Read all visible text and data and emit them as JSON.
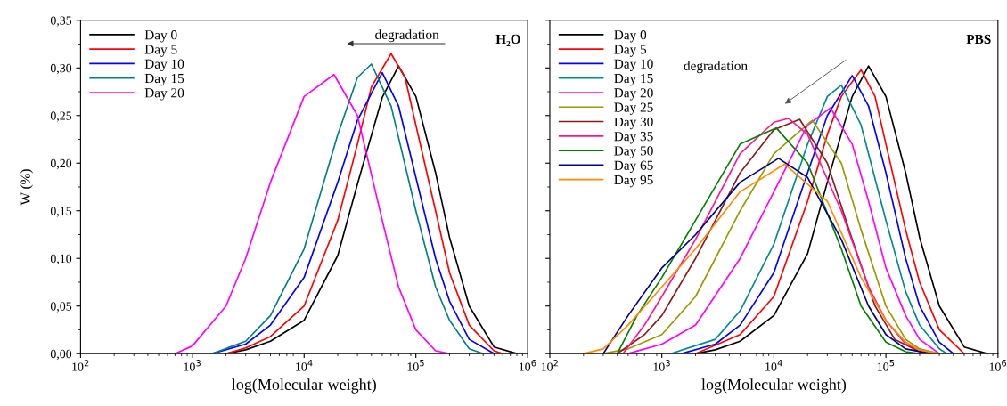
{
  "chart_data": [
    {
      "type": "line",
      "title": "H₂O",
      "xlabel": "log(Molecular weight)",
      "ylabel": "W (%)",
      "log": "x",
      "legend": "top left",
      "grid": false,
      "marker": "none",
      "line_style": "solid",
      "annotations": [
        "degradation"
      ],
      "xlim": [
        100,
        1000000
      ],
      "xticks": [
        {
          "value": 100,
          "label": "10$^{2}$"
        },
        {
          "value": 1000,
          "label": "10$^{3}$"
        },
        {
          "value": 10000,
          "label": "10$^{4}$"
        },
        {
          "value": 100000,
          "label": "10$^{5}$"
        },
        {
          "value": 1000000,
          "label": "10$^{6}$"
        }
      ],
      "ylim": [
        0,
        0.35
      ],
      "yticks": [
        {
          "value": 0,
          "label": "0,00"
        },
        {
          "value": 0.05,
          "label": "0,05"
        },
        {
          "value": 0.1,
          "label": "0,10"
        },
        {
          "value": 0.15,
          "label": "0,15"
        },
        {
          "value": 0.2,
          "label": "0,20"
        },
        {
          "value": 0.25,
          "label": "0,25"
        },
        {
          "value": 0.3,
          "label": "0,30"
        },
        {
          "value": 0.35,
          "label": "0,35"
        }
      ],
      "series": [
        {
          "name": "Day 0",
          "color": "#000000",
          "x": [
            2000,
            3000,
            5000,
            10000,
            20000,
            30000,
            50000,
            70000,
            100000,
            150000,
            200000,
            300000,
            500000,
            800000
          ],
          "values": [
            0,
            0.004,
            0.013,
            0.035,
            0.103,
            0.178,
            0.269,
            0.302,
            0.27,
            0.19,
            0.122,
            0.05,
            0.007,
            0
          ]
        },
        {
          "name": "Day 5",
          "color": "#ff0000",
          "x": [
            2000,
            3000,
            5000,
            10000,
            20000,
            30000,
            40000,
            60000,
            80000,
            100000,
            150000,
            200000,
            300000,
            500000,
            600000
          ],
          "values": [
            0,
            0.006,
            0.018,
            0.05,
            0.14,
            0.22,
            0.28,
            0.315,
            0.29,
            0.24,
            0.15,
            0.085,
            0.03,
            0.003,
            0
          ]
        },
        {
          "name": "Day 10",
          "color": "#0000ff",
          "x": [
            1500,
            3000,
            5000,
            10000,
            20000,
            30000,
            50000,
            70000,
            100000,
            150000,
            200000,
            300000,
            500000
          ],
          "values": [
            0,
            0.01,
            0.03,
            0.08,
            0.18,
            0.245,
            0.295,
            0.26,
            0.185,
            0.1,
            0.055,
            0.015,
            0
          ]
        },
        {
          "name": "Day 15",
          "color": "#008080",
          "x": [
            1500,
            3000,
            5000,
            10000,
            20000,
            30000,
            40000,
            60000,
            100000,
            150000,
            200000,
            300000,
            400000
          ],
          "values": [
            0,
            0.013,
            0.04,
            0.11,
            0.23,
            0.29,
            0.304,
            0.26,
            0.15,
            0.07,
            0.035,
            0.005,
            0
          ]
        },
        {
          "name": "Day 20",
          "color": "#ff00ff",
          "x": [
            700,
            1000,
            2000,
            3000,
            5000,
            10000,
            18500,
            30000,
            50000,
            70000,
            100000,
            150000,
            200000
          ],
          "values": [
            0,
            0.008,
            0.05,
            0.1,
            0.18,
            0.27,
            0.293,
            0.25,
            0.14,
            0.07,
            0.025,
            0.003,
            0
          ]
        }
      ]
    },
    {
      "type": "line",
      "title": "PBS",
      "xlabel": "log(Molecular weight)",
      "log": "x",
      "legend": "top left",
      "grid": false,
      "marker": "none",
      "line_style": "solid",
      "tick_labels": "x",
      "annotations": [
        "degradation"
      ],
      "xlim": [
        100,
        1000000
      ],
      "xticks": [
        {
          "value": 100,
          "label": "10$^{2}$"
        },
        {
          "value": 1000,
          "label": "10$^{3}$"
        },
        {
          "value": 10000,
          "label": "10$^{4}$"
        },
        {
          "value": 100000,
          "label": "10$^{5}$"
        },
        {
          "value": 1000000,
          "label": "10$^{6}$"
        }
      ],
      "ylim": [
        0,
        0.35
      ],
      "yticks": [
        0,
        0.05,
        0.1,
        0.15,
        0.2,
        0.25,
        0.3,
        0.35
      ],
      "series": [
        {
          "name": "Day 0",
          "color": "#000000",
          "x": [
            2000,
            3000,
            5000,
            10000,
            20000,
            30000,
            50000,
            70000,
            100000,
            150000,
            200000,
            300000,
            500000,
            800000
          ],
          "values": [
            0,
            0.004,
            0.013,
            0.04,
            0.105,
            0.18,
            0.27,
            0.302,
            0.27,
            0.19,
            0.122,
            0.05,
            0.007,
            0
          ]
        },
        {
          "name": "Day 5",
          "color": "#ff0000",
          "x": [
            2000,
            5000,
            10000,
            20000,
            30000,
            40000,
            60000,
            80000,
            100000,
            150000,
            200000,
            300000,
            500000
          ],
          "values": [
            0,
            0.02,
            0.06,
            0.16,
            0.23,
            0.27,
            0.298,
            0.27,
            0.22,
            0.13,
            0.075,
            0.025,
            0
          ]
        },
        {
          "name": "Day 10",
          "color": "#0000ff",
          "x": [
            1500,
            3000,
            5000,
            10000,
            20000,
            30000,
            50000,
            70000,
            100000,
            150000,
            200000,
            300000,
            400000
          ],
          "values": [
            0,
            0.01,
            0.03,
            0.085,
            0.19,
            0.25,
            0.292,
            0.26,
            0.19,
            0.1,
            0.05,
            0.012,
            0
          ]
        },
        {
          "name": "Day 15",
          "color": "#008b8b",
          "x": [
            1200,
            3000,
            5000,
            10000,
            20000,
            30000,
            40000,
            60000,
            100000,
            150000,
            200000,
            300000,
            350000
          ],
          "values": [
            0,
            0.015,
            0.045,
            0.115,
            0.22,
            0.27,
            0.282,
            0.24,
            0.14,
            0.065,
            0.03,
            0.005,
            0
          ]
        },
        {
          "name": "Day 20",
          "color": "#ff00ff",
          "x": [
            500,
            1000,
            2000,
            5000,
            10000,
            20000,
            32000,
            50000,
            70000,
            100000,
            150000,
            200000,
            300000
          ],
          "values": [
            0,
            0.01,
            0.03,
            0.1,
            0.17,
            0.24,
            0.258,
            0.22,
            0.16,
            0.09,
            0.04,
            0.015,
            0
          ]
        },
        {
          "name": "Day 25",
          "color": "#999900",
          "x": [
            300,
            500,
            1000,
            2000,
            5000,
            10000,
            22000,
            40000,
            60000,
            100000,
            150000,
            200000,
            300000
          ],
          "values": [
            0,
            0.005,
            0.02,
            0.06,
            0.15,
            0.21,
            0.245,
            0.2,
            0.13,
            0.05,
            0.015,
            0.005,
            0
          ]
        },
        {
          "name": "Day 30",
          "color": "#8b1a1a",
          "x": [
            400,
            700,
            1000,
            2000,
            5000,
            10000,
            17000,
            30000,
            50000,
            80000,
            120000,
            200000,
            250000
          ],
          "values": [
            0,
            0.02,
            0.04,
            0.1,
            0.19,
            0.235,
            0.246,
            0.2,
            0.12,
            0.05,
            0.015,
            0.002,
            0
          ]
        },
        {
          "name": "Day 35",
          "color": "#ff1493",
          "x": [
            450,
            700,
            1000,
            2000,
            5000,
            10000,
            13500,
            20000,
            40000,
            70000,
            100000,
            150000,
            250000
          ],
          "values": [
            0,
            0.03,
            0.06,
            0.12,
            0.21,
            0.243,
            0.247,
            0.23,
            0.15,
            0.07,
            0.035,
            0.01,
            0
          ]
        },
        {
          "name": "Day 50",
          "color": "#008000",
          "x": [
            400,
            600,
            1000,
            2000,
            5000,
            10500,
            20000,
            40000,
            60000,
            100000,
            150000,
            200000
          ],
          "values": [
            0,
            0.04,
            0.08,
            0.14,
            0.22,
            0.237,
            0.2,
            0.11,
            0.05,
            0.012,
            0.002,
            0
          ]
        },
        {
          "name": "Day 65",
          "color": "#00008b",
          "x": [
            300,
            500,
            1000,
            2000,
            5000,
            11000,
            20000,
            40000,
            70000,
            100000,
            150000,
            250000
          ],
          "values": [
            0,
            0.04,
            0.09,
            0.125,
            0.18,
            0.205,
            0.185,
            0.12,
            0.05,
            0.02,
            0.005,
            0
          ]
        },
        {
          "name": "Day 95",
          "color": "#ff8c00",
          "x": [
            200,
            300,
            500,
            1000,
            2000,
            5000,
            12500,
            30000,
            60000,
            100000,
            150000,
            200000,
            300000
          ],
          "values": [
            0,
            0.005,
            0.03,
            0.07,
            0.11,
            0.17,
            0.199,
            0.16,
            0.08,
            0.035,
            0.012,
            0.004,
            0
          ]
        }
      ]
    }
  ]
}
